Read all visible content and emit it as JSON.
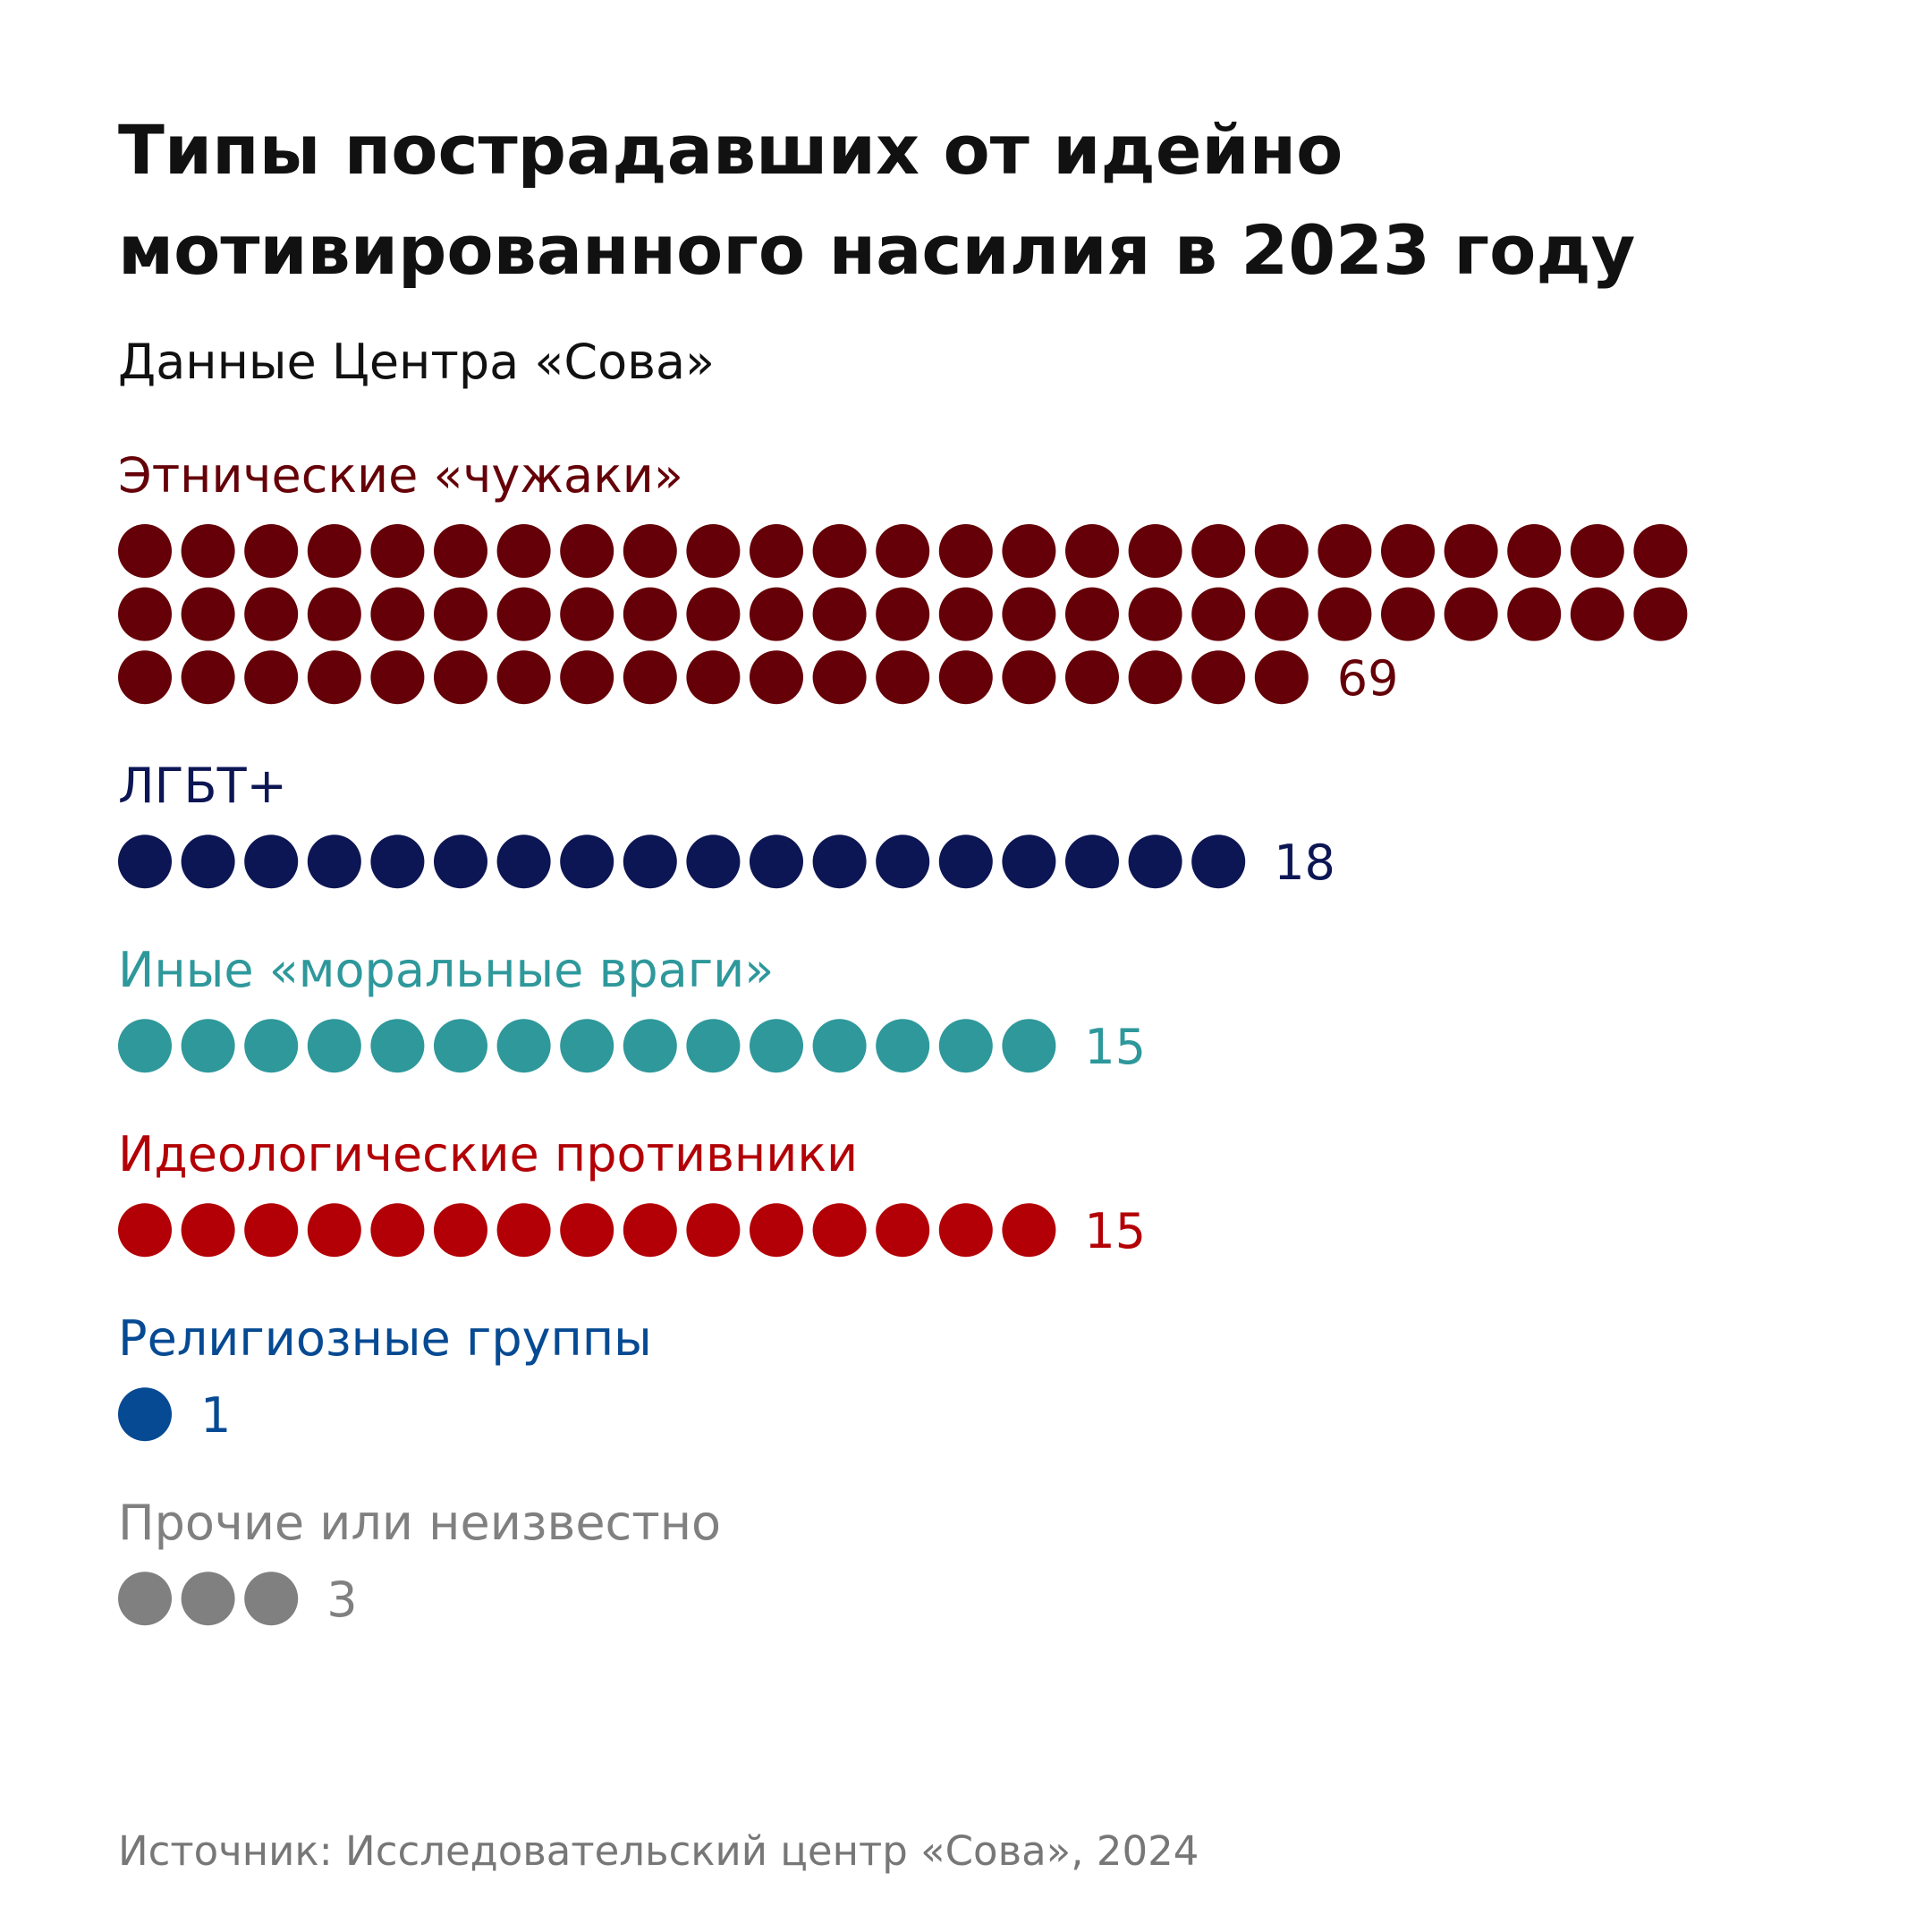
{
  "title": "Типы пострадавших от идейно мотивированного насилия в 2023 году",
  "subtitle": "Данные Центра «Сова»",
  "source": "Источник: Исследовательский центр «Сова», 2024",
  "chart_data": {
    "type": "dot-matrix",
    "title": "Типы пострадавших от идейно мотивированного насилия в 2023 году",
    "subtitle": "Данные Центра «Сова»",
    "dots_per_row": 25,
    "categories": [
      {
        "label": "Этнические «чужаки»",
        "value": 69,
        "color": "#650008"
      },
      {
        "label": "ЛГБТ+",
        "value": 18,
        "color": "#0d1654"
      },
      {
        "label": "Иные «моральные враги»",
        "value": 15,
        "color": "#2e989b"
      },
      {
        "label": "Идеологические противники",
        "value": 15,
        "color": "#b30006"
      },
      {
        "label": "Религиозные группы",
        "value": 1,
        "color": "#064a93"
      },
      {
        "label": "Прочие или неизвестно",
        "value": 3,
        "color": "#808080"
      }
    ]
  }
}
